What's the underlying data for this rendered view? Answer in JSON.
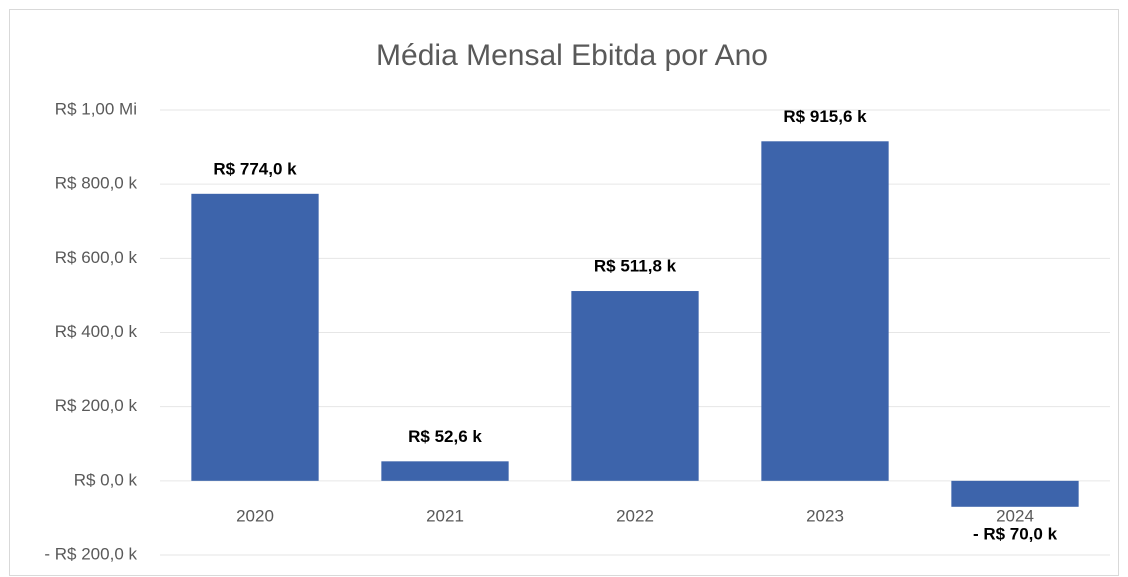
{
  "chart_data": {
    "type": "bar",
    "title": "Média Mensal Ebitda por Ano",
    "categories": [
      "2020",
      "2021",
      "2022",
      "2023",
      "2024"
    ],
    "values": [
      774000,
      52600,
      511800,
      915600,
      -70000
    ],
    "value_labels": [
      "R$ 774,0 k",
      "R$ 52,6 k",
      "R$ 511,8 k",
      "R$ 915,6 k",
      "- R$ 70,0 k"
    ],
    "color": "#3d64ab",
    "ylim": [
      -200000,
      1000000
    ],
    "yticks": [
      {
        "value": -200000,
        "label": "- R$ 200,0 k"
      },
      {
        "value": 0,
        "label": "R$ 0,0 k"
      },
      {
        "value": 200000,
        "label": "R$ 200,0 k"
      },
      {
        "value": 400000,
        "label": "R$ 400,0 k"
      },
      {
        "value": 600000,
        "label": "R$ 600,0 k"
      },
      {
        "value": 800000,
        "label": "R$ 800,0 k"
      },
      {
        "value": 1000000,
        "label": "R$ 1,00 Mi"
      }
    ],
    "grid": true
  }
}
